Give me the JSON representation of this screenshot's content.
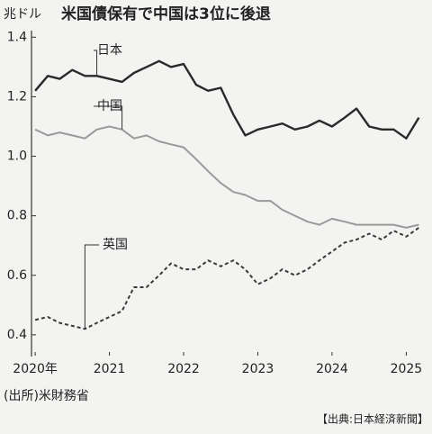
{
  "chart_data": {
    "type": "line",
    "title": "米国債保有で中国は3位に後退",
    "y_label": "兆ドル",
    "source": "(出所)米財務省",
    "credit": "【出典:日本経済新聞】",
    "x": [
      2020,
      2020.17,
      2020.33,
      2020.5,
      2020.67,
      2020.83,
      2021,
      2021.17,
      2021.33,
      2021.5,
      2021.67,
      2021.83,
      2022,
      2022.17,
      2022.33,
      2022.5,
      2022.67,
      2022.83,
      2023,
      2023.17,
      2023.33,
      2023.5,
      2023.67,
      2023.83,
      2024,
      2024.17,
      2024.33,
      2024.5,
      2024.67,
      2024.83,
      2025,
      2025.17
    ],
    "series": [
      {
        "name": "日本",
        "color": "#2a2a2a",
        "dashed": false,
        "values": [
          1.22,
          1.27,
          1.26,
          1.29,
          1.27,
          1.27,
          1.26,
          1.25,
          1.28,
          1.3,
          1.32,
          1.3,
          1.31,
          1.24,
          1.22,
          1.23,
          1.14,
          1.07,
          1.09,
          1.1,
          1.11,
          1.09,
          1.1,
          1.12,
          1.1,
          1.13,
          1.16,
          1.1,
          1.09,
          1.09,
          1.06,
          1.13
        ]
      },
      {
        "name": "中国",
        "color": "#9a9a9a",
        "dashed": false,
        "values": [
          1.09,
          1.07,
          1.08,
          1.07,
          1.06,
          1.09,
          1.1,
          1.09,
          1.06,
          1.07,
          1.05,
          1.04,
          1.03,
          0.99,
          0.95,
          0.91,
          0.88,
          0.87,
          0.85,
          0.85,
          0.82,
          0.8,
          0.78,
          0.77,
          0.79,
          0.78,
          0.77,
          0.77,
          0.77,
          0.77,
          0.76,
          0.77
        ]
      },
      {
        "name": "英国",
        "color": "#3a3a3a",
        "dashed": true,
        "values": [
          0.45,
          0.46,
          0.44,
          0.43,
          0.42,
          0.44,
          0.46,
          0.48,
          0.56,
          0.56,
          0.6,
          0.64,
          0.62,
          0.62,
          0.65,
          0.63,
          0.65,
          0.62,
          0.57,
          0.59,
          0.62,
          0.6,
          0.62,
          0.65,
          0.68,
          0.71,
          0.72,
          0.74,
          0.72,
          0.75,
          0.73,
          0.76
        ]
      }
    ],
    "xlim": [
      2019.95,
      2025.25
    ],
    "xticks": [
      {
        "value": 2020,
        "label": "2020年"
      },
      2021,
      2022,
      2023,
      2024,
      2025
    ],
    "ylim": [
      0.33,
      1.41
    ],
    "yticks": [
      0.4,
      0.6,
      0.8,
      {
        "value": 1,
        "label": "1.0"
      },
      1.2,
      1.4
    ]
  }
}
